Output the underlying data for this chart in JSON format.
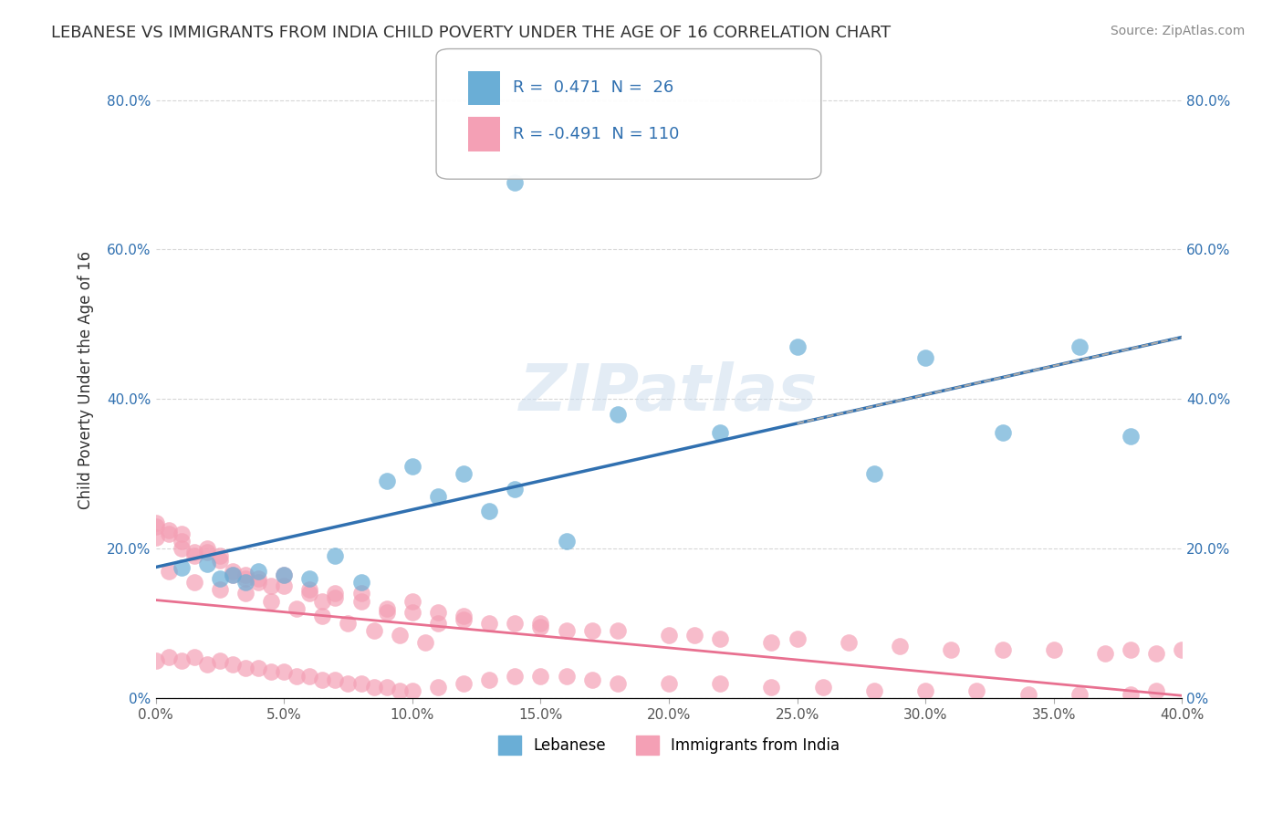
{
  "title": "LEBANESE VS IMMIGRANTS FROM INDIA CHILD POVERTY UNDER THE AGE OF 16 CORRELATION CHART",
  "source": "Source: ZipAtlas.com",
  "xlabel": "",
  "ylabel": "Child Poverty Under the Age of 16",
  "xlim": [
    0.0,
    0.4
  ],
  "ylim": [
    0.0,
    0.85
  ],
  "xticks": [
    0.0,
    0.05,
    0.1,
    0.15,
    0.2,
    0.25,
    0.3,
    0.35,
    0.4
  ],
  "xtick_labels": [
    "0.0%",
    "5.0%",
    "10.0%",
    "15.0%",
    "20.0%",
    "25.0%",
    "30.0%",
    "35.0%",
    "40.0%"
  ],
  "yticks": [
    0.0,
    0.2,
    0.4,
    0.6,
    0.8
  ],
  "ytick_labels": [
    "0%",
    "20.0%",
    "40.0%",
    "60.0%",
    "80.0%"
  ],
  "legend_R1": "R =  0.471  N =  26",
  "legend_R2": "R = -0.491  N = 110",
  "color_blue": "#6aaed6",
  "color_pink": "#f4a0b5",
  "color_blue_line": "#3070b0",
  "color_pink_line": "#e87090",
  "color_dashed_line": "#aaaaaa",
  "legend_text_color": "#3070b0",
  "blue_scatter_x": [
    0.01,
    0.02,
    0.025,
    0.03,
    0.035,
    0.04,
    0.05,
    0.06,
    0.07,
    0.08,
    0.09,
    0.1,
    0.11,
    0.12,
    0.13,
    0.14,
    0.16,
    0.18,
    0.22,
    0.25,
    0.28,
    0.3,
    0.33,
    0.36,
    0.38,
    0.14
  ],
  "blue_scatter_y": [
    0.175,
    0.18,
    0.16,
    0.165,
    0.155,
    0.17,
    0.165,
    0.16,
    0.19,
    0.155,
    0.29,
    0.31,
    0.27,
    0.3,
    0.25,
    0.28,
    0.21,
    0.38,
    0.355,
    0.47,
    0.3,
    0.455,
    0.355,
    0.47,
    0.35,
    0.69
  ],
  "pink_scatter_x": [
    0.0,
    0.0,
    0.0,
    0.005,
    0.005,
    0.01,
    0.01,
    0.01,
    0.015,
    0.015,
    0.02,
    0.02,
    0.025,
    0.025,
    0.03,
    0.03,
    0.035,
    0.035,
    0.04,
    0.04,
    0.045,
    0.05,
    0.05,
    0.06,
    0.06,
    0.065,
    0.07,
    0.07,
    0.08,
    0.08,
    0.09,
    0.09,
    0.1,
    0.1,
    0.11,
    0.11,
    0.12,
    0.12,
    0.13,
    0.14,
    0.15,
    0.15,
    0.16,
    0.17,
    0.18,
    0.2,
    0.21,
    0.22,
    0.24,
    0.25,
    0.27,
    0.29,
    0.31,
    0.33,
    0.35,
    0.37,
    0.38,
    0.39,
    0.4,
    0.0,
    0.005,
    0.01,
    0.015,
    0.02,
    0.025,
    0.03,
    0.035,
    0.04,
    0.045,
    0.05,
    0.055,
    0.06,
    0.065,
    0.07,
    0.075,
    0.08,
    0.085,
    0.09,
    0.095,
    0.1,
    0.11,
    0.12,
    0.13,
    0.14,
    0.15,
    0.16,
    0.17,
    0.18,
    0.2,
    0.22,
    0.24,
    0.26,
    0.28,
    0.3,
    0.32,
    0.34,
    0.36,
    0.38,
    0.39,
    0.005,
    0.015,
    0.025,
    0.035,
    0.045,
    0.055,
    0.065,
    0.075,
    0.085,
    0.095,
    0.105
  ],
  "pink_scatter_y": [
    0.235,
    0.23,
    0.215,
    0.225,
    0.22,
    0.22,
    0.21,
    0.2,
    0.195,
    0.19,
    0.2,
    0.195,
    0.19,
    0.185,
    0.17,
    0.165,
    0.165,
    0.16,
    0.16,
    0.155,
    0.15,
    0.165,
    0.15,
    0.145,
    0.14,
    0.13,
    0.14,
    0.135,
    0.14,
    0.13,
    0.12,
    0.115,
    0.13,
    0.115,
    0.115,
    0.1,
    0.11,
    0.105,
    0.1,
    0.1,
    0.1,
    0.095,
    0.09,
    0.09,
    0.09,
    0.085,
    0.085,
    0.08,
    0.075,
    0.08,
    0.075,
    0.07,
    0.065,
    0.065,
    0.065,
    0.06,
    0.065,
    0.06,
    0.065,
    0.05,
    0.055,
    0.05,
    0.055,
    0.045,
    0.05,
    0.045,
    0.04,
    0.04,
    0.035,
    0.035,
    0.03,
    0.03,
    0.025,
    0.025,
    0.02,
    0.02,
    0.015,
    0.015,
    0.01,
    0.01,
    0.015,
    0.02,
    0.025,
    0.03,
    0.03,
    0.03,
    0.025,
    0.02,
    0.02,
    0.02,
    0.015,
    0.015,
    0.01,
    0.01,
    0.01,
    0.005,
    0.005,
    0.005,
    0.01,
    0.17,
    0.155,
    0.145,
    0.14,
    0.13,
    0.12,
    0.11,
    0.1,
    0.09,
    0.085,
    0.075
  ],
  "background_color": "#ffffff",
  "grid_color": "#cccccc"
}
